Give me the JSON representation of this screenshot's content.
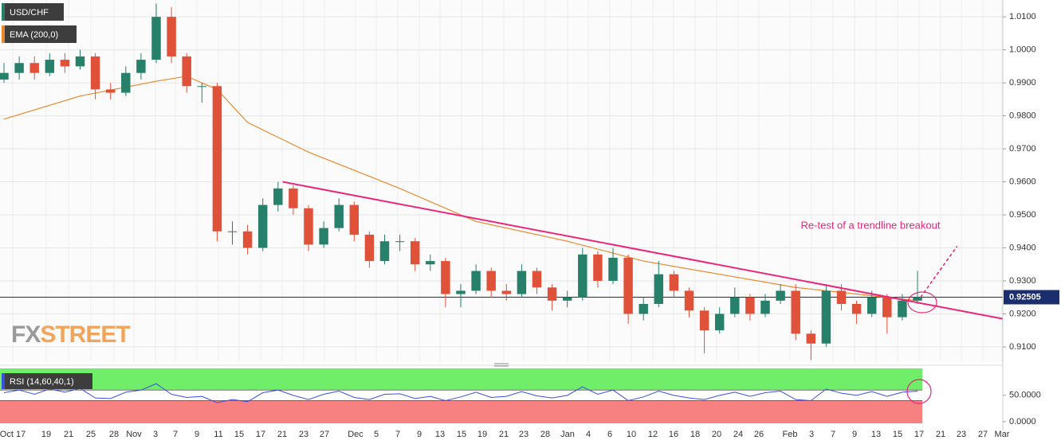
{
  "chart_data": {
    "type": "candlestick",
    "symbol": "USD/CHF",
    "logo": [
      "FX",
      "STREET"
    ],
    "annotation": "Re-test of a  trendline breakout",
    "categories": [
      "Oct 17",
      "19",
      "21",
      "25",
      "28",
      "Nov",
      "3",
      "7",
      "9",
      "11",
      "15",
      "17",
      "21",
      "23",
      "27",
      "Dec",
      "5",
      "7",
      "9",
      "13",
      "15",
      "19",
      "21",
      "23",
      "28",
      "Jan",
      "4",
      "6",
      "10",
      "12",
      "16",
      "18",
      "20",
      "24",
      "26",
      "Feb",
      "3",
      "7",
      "9",
      "13",
      "15",
      "17",
      "21",
      "23",
      "27",
      "Mar"
    ],
    "ylim": [
      0.9054,
      1.0151
    ],
    "yticks": [
      {
        "value": 1.01,
        "label": "1.0100"
      },
      {
        "value": 1.0,
        "label": "1.0000"
      },
      {
        "value": 0.99,
        "label": "0.9900"
      },
      {
        "value": 0.98,
        "label": "0.9800"
      },
      {
        "value": 0.97,
        "label": "0.9700"
      },
      {
        "value": 0.96,
        "label": "0.9600"
      },
      {
        "value": 0.95,
        "label": "0.9500"
      },
      {
        "value": 0.94,
        "label": "0.9400"
      },
      {
        "value": 0.93,
        "label": "0.9300"
      },
      {
        "value": 0.92,
        "label": "0.9200"
      },
      {
        "value": 0.91,
        "label": "0.9100"
      }
    ],
    "last_price": 0.92505,
    "grid": true,
    "up_color": "#26806a",
    "down_color": "#e0513a",
    "ohlc": [
      [
        0.991,
        0.996,
        0.99,
        0.993
      ],
      [
        0.993,
        0.998,
        0.991,
        0.996
      ],
      [
        0.996,
        0.998,
        0.991,
        0.993
      ],
      [
        0.993,
        0.999,
        0.992,
        0.997
      ],
      [
        0.997,
        0.999,
        0.993,
        0.995
      ],
      [
        0.995,
        1.0,
        0.994,
        0.998
      ],
      [
        0.998,
        0.999,
        0.985,
        0.988
      ],
      [
        0.988,
        0.99,
        0.985,
        0.987
      ],
      [
        0.987,
        0.995,
        0.986,
        0.993
      ],
      [
        0.993,
        0.999,
        0.991,
        0.997
      ],
      [
        0.997,
        1.014,
        0.996,
        1.01
      ],
      [
        1.01,
        1.013,
        0.996,
        0.998
      ],
      [
        0.998,
        0.999,
        0.987,
        0.989
      ],
      [
        0.989,
        0.99,
        0.984,
        0.989
      ],
      [
        0.989,
        0.99,
        0.942,
        0.945
      ],
      [
        0.945,
        0.948,
        0.941,
        0.945
      ],
      [
        0.945,
        0.947,
        0.938,
        0.94
      ],
      [
        0.94,
        0.955,
        0.939,
        0.953
      ],
      [
        0.953,
        0.96,
        0.951,
        0.958
      ],
      [
        0.958,
        0.959,
        0.95,
        0.952
      ],
      [
        0.952,
        0.953,
        0.939,
        0.941
      ],
      [
        0.941,
        0.948,
        0.94,
        0.946
      ],
      [
        0.946,
        0.955,
        0.945,
        0.953
      ],
      [
        0.953,
        0.954,
        0.942,
        0.944
      ],
      [
        0.944,
        0.945,
        0.934,
        0.936
      ],
      [
        0.936,
        0.944,
        0.935,
        0.942
      ],
      [
        0.942,
        0.944,
        0.939,
        0.942
      ],
      [
        0.942,
        0.943,
        0.933,
        0.935
      ],
      [
        0.935,
        0.938,
        0.933,
        0.936
      ],
      [
        0.936,
        0.937,
        0.922,
        0.926
      ],
      [
        0.926,
        0.929,
        0.922,
        0.927
      ],
      [
        0.927,
        0.935,
        0.926,
        0.933
      ],
      [
        0.933,
        0.934,
        0.925,
        0.927
      ],
      [
        0.927,
        0.929,
        0.924,
        0.926
      ],
      [
        0.926,
        0.935,
        0.925,
        0.933
      ],
      [
        0.933,
        0.934,
        0.926,
        0.928
      ],
      [
        0.928,
        0.929,
        0.921,
        0.924
      ],
      [
        0.924,
        0.927,
        0.922,
        0.925
      ],
      [
        0.925,
        0.94,
        0.924,
        0.938
      ],
      [
        0.938,
        0.939,
        0.928,
        0.93
      ],
      [
        0.93,
        0.94,
        0.929,
        0.937
      ],
      [
        0.937,
        0.938,
        0.917,
        0.92
      ],
      [
        0.92,
        0.925,
        0.918,
        0.923
      ],
      [
        0.923,
        0.936,
        0.922,
        0.932
      ],
      [
        0.932,
        0.933,
        0.925,
        0.927
      ],
      [
        0.927,
        0.928,
        0.919,
        0.921
      ],
      [
        0.921,
        0.922,
        0.908,
        0.915
      ],
      [
        0.915,
        0.922,
        0.914,
        0.92
      ],
      [
        0.92,
        0.928,
        0.919,
        0.925
      ],
      [
        0.925,
        0.926,
        0.918,
        0.92
      ],
      [
        0.92,
        0.926,
        0.919,
        0.924
      ],
      [
        0.924,
        0.929,
        0.923,
        0.927
      ],
      [
        0.927,
        0.929,
        0.912,
        0.914
      ],
      [
        0.914,
        0.915,
        0.906,
        0.911
      ],
      [
        0.911,
        0.929,
        0.91,
        0.927
      ],
      [
        0.927,
        0.929,
        0.921,
        0.923
      ],
      [
        0.923,
        0.924,
        0.917,
        0.92
      ],
      [
        0.92,
        0.927,
        0.919,
        0.925
      ],
      [
        0.925,
        0.926,
        0.914,
        0.919
      ],
      [
        0.919,
        0.926,
        0.918,
        0.924
      ],
      [
        0.924,
        0.933,
        0.923,
        0.92505
      ]
    ],
    "ema": {
      "name": "EMA (200,0)",
      "color": "#e8892e",
      "x": [
        0,
        5,
        10,
        12,
        14,
        16,
        20,
        26,
        31,
        37,
        42,
        47,
        52,
        57,
        60
      ],
      "values": [
        0.979,
        0.986,
        0.9905,
        0.992,
        0.988,
        0.978,
        0.969,
        0.958,
        0.948,
        0.942,
        0.936,
        0.932,
        0.928,
        0.9255,
        0.924
      ]
    },
    "trendline": {
      "color": "#e8287a",
      "x": [
        18.3,
        65.6
      ],
      "values": [
        0.96,
        0.9185
      ]
    },
    "projection": {
      "x": [
        60.2,
        62.6
      ],
      "values": [
        0.925,
        0.9405
      ]
    },
    "rsi": {
      "name": "RSI (14,60,40,1)",
      "color": "#3a4fe0",
      "ylim": [
        -3,
        101
      ],
      "yticks": [
        {
          "value": 50,
          "label": "50.0000"
        },
        {
          "value": 0,
          "label": "0.0000"
        }
      ],
      "upper": 60,
      "lower": 40,
      "upper_color": "#70ee6a",
      "lower_color": "#f78080",
      "values": [
        55,
        60,
        52,
        62,
        56,
        63,
        45,
        44,
        56,
        60,
        72,
        52,
        46,
        48,
        36,
        42,
        38,
        55,
        60,
        50,
        42,
        52,
        58,
        46,
        42,
        52,
        53,
        44,
        48,
        40,
        47,
        56,
        46,
        48,
        57,
        49,
        45,
        50,
        66,
        52,
        60,
        40,
        47,
        58,
        50,
        45,
        42,
        50,
        56,
        48,
        55,
        58,
        42,
        40,
        62,
        54,
        50,
        57,
        48,
        56,
        58
      ]
    }
  }
}
